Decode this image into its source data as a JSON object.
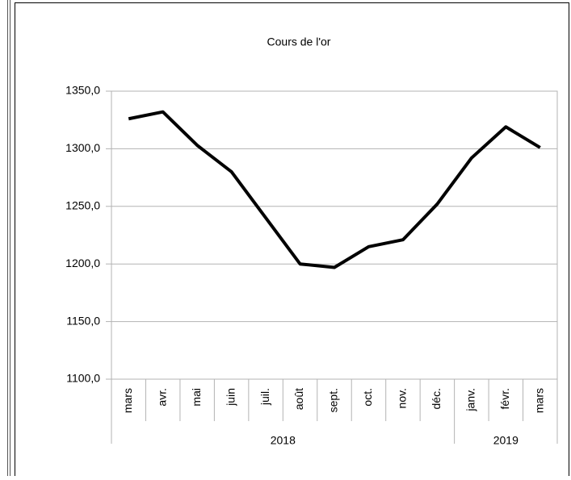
{
  "chart_data": {
    "type": "line",
    "title": "Cours de l'or",
    "categories": [
      "mars",
      "avr.",
      "mai",
      "juin",
      "juil.",
      "août",
      "sept.",
      "oct.",
      "nov.",
      "déc.",
      "janv.",
      "févr.",
      "mars"
    ],
    "groups": [
      {
        "label": "2018",
        "count": 10
      },
      {
        "label": "2019",
        "count": 3
      }
    ],
    "series": [
      {
        "name": "Cours de l'or",
        "color": "#000000",
        "values": [
          1326,
          1332,
          1303,
          1280,
          1240,
          1200,
          1197,
          1215,
          1221,
          1252,
          1292,
          1319,
          1301
        ]
      }
    ],
    "ylim": [
      1100,
      1350
    ],
    "yticks": [
      {
        "value": 1100,
        "label": "1100,0"
      },
      {
        "value": 1150,
        "label": "1150,0"
      },
      {
        "value": 1200,
        "label": "1200,0"
      },
      {
        "value": 1250,
        "label": "1250,0"
      },
      {
        "value": 1300,
        "label": "1300,0"
      },
      {
        "value": 1350,
        "label": "1350,0"
      }
    ],
    "grid": true
  }
}
